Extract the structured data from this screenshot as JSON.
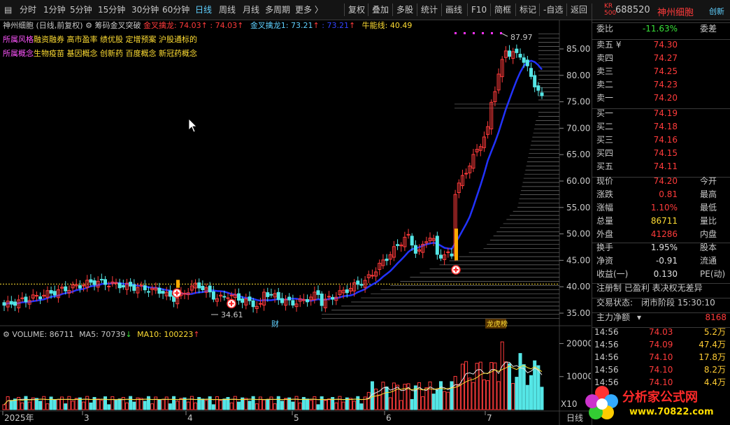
{
  "toolbar": {
    "periods": [
      "分时",
      "1分钟",
      "5分钟",
      "15分钟",
      "30分钟",
      "60分钟",
      "日线",
      "周线",
      "月线",
      "多周期",
      "更多 〉"
    ],
    "active_period": "日线",
    "tools": [
      "复权",
      "叠加",
      "多股",
      "统计",
      "画线",
      "F10",
      "简框",
      "标记",
      "-自选",
      "返回"
    ]
  },
  "header": {
    "badge_top": "KR",
    "badge_bottom": "500",
    "code": "688520",
    "name": "神州细胞",
    "extra": "创新"
  },
  "chart": {
    "title": "神州细胞 (日线,前复权)",
    "indicator_name": "筹码金叉突破",
    "l1_label": "金叉擒龙:",
    "l1_value": "74.03",
    "l1_value2": ": 74.03",
    "l2_label": "金叉擒龙1:",
    "l2_value": "73.21",
    "l2_value2": ": 73.21",
    "l3_label": "牛能线:",
    "l3_value": "40.49",
    "style_label": "所属风格",
    "style_value": "融资融券 高市盈率 绩优股 定增预案 沪股通标的",
    "concept_label": "所属概念",
    "concept_value": "生物疫苗 基因概念 创新药 百度概念 新冠药概念",
    "high_label": "87.97",
    "low_label": "34.61",
    "marker_cai": "财",
    "marker_bang": "龙虎榜",
    "y_axis": [
      "85.00",
      "80.00",
      "75.00",
      "70.00",
      "65.00",
      "60.00",
      "55.00",
      "50.00",
      "45.00",
      "40.00",
      "35.00"
    ],
    "x_axis": [
      "2025年",
      "3",
      "4",
      "5",
      "6",
      "7"
    ],
    "period_label": "日线"
  },
  "volume": {
    "label": "VOLUME:",
    "value": "86711",
    "ma5_label": "MA5:",
    "ma5_value": "70739",
    "ma10_label": "MA10:",
    "ma10_value": "100223",
    "y_axis": [
      "20000",
      "10000"
    ],
    "unit": "X10"
  },
  "quote": {
    "wb_label": "委比",
    "wb_value": "-11.63%",
    "wc_label": "委差",
    "asks": [
      {
        "label": "卖五 ¥",
        "price": "74.30"
      },
      {
        "label": "卖四",
        "price": "74.27"
      },
      {
        "label": "卖三",
        "price": "74.25"
      },
      {
        "label": "卖二",
        "price": "74.23"
      },
      {
        "label": "卖一",
        "price": "74.20"
      }
    ],
    "bids": [
      {
        "label": "买一",
        "price": "74.19"
      },
      {
        "label": "买二",
        "price": "74.18"
      },
      {
        "label": "买三",
        "price": "74.16"
      },
      {
        "label": "买四",
        "price": "74.15"
      },
      {
        "label": "买五",
        "price": "74.11"
      }
    ],
    "stats": [
      {
        "l": "现价",
        "v": "74.20",
        "r": "今开",
        "c": "red"
      },
      {
        "l": "涨跌",
        "v": "0.81",
        "r": "最高",
        "c": "red"
      },
      {
        "l": "涨幅",
        "v": "1.10%",
        "r": "最低",
        "c": "red"
      },
      {
        "l": "总量",
        "v": "86711",
        "r": "量比",
        "c": "yellow"
      },
      {
        "l": "外盘",
        "v": "41286",
        "r": "内盘",
        "c": "red"
      }
    ],
    "stats2": [
      {
        "l": "换手",
        "v": "1.95%",
        "r": "股本",
        "c": "white"
      },
      {
        "l": "净资",
        "v": "-0.91",
        "r": "流通",
        "c": "white"
      },
      {
        "l": "收益(一)",
        "v": "0.130",
        "r": "PE(动)",
        "c": "white"
      }
    ],
    "reg_line": "注册制 已盈利 表决权无差异",
    "status_label": "交易状态:",
    "status_value": "闭市阶段 15:30:10",
    "main_flow_label": "主力净额",
    "main_flow_value": "8168"
  },
  "ticks": [
    {
      "time": "14:56",
      "price": "74.03",
      "vol": "5.2万"
    },
    {
      "time": "14:56",
      "price": "74.09",
      "vol": "47.4万"
    },
    {
      "time": "14:56",
      "price": "74.10",
      "vol": "17.8万"
    },
    {
      "time": "14:56",
      "price": "74.10",
      "vol": "8.2万"
    },
    {
      "time": "14:56",
      "price": "74.10",
      "vol": "4.4万"
    }
  ],
  "watermark": {
    "line1": "分析家公式网",
    "line2": "www.70822.com"
  }
}
